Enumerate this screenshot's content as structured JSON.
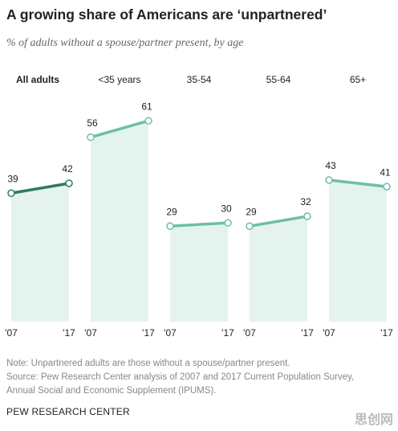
{
  "title": "A growing share of Americans are ‘unpartnered’",
  "subtitle": "% of adults without a spouse/partner present, by age",
  "note": "Note: Unpartnered adults are those without a spouse/partner present.",
  "source": "Source: Pew Research Center analysis of 2007 and 2017 Current Population Survey, Annual Social and Economic Supplement (IPUMS).",
  "credit": "PEW RESEARCH CENTER",
  "watermark": "思创网",
  "chart_data": [
    {
      "type": "line",
      "title": "All adults",
      "categories": [
        "'07",
        "'17"
      ],
      "values": [
        39,
        42
      ],
      "color": "#2e7a68",
      "fill": "#e5f3ee",
      "ylim": [
        0,
        63
      ]
    },
    {
      "type": "line",
      "title": "<35 years",
      "categories": [
        "'07",
        "'17"
      ],
      "values": [
        56,
        61
      ],
      "color": "#6cbfa9",
      "fill": "#e5f3ee",
      "ylim": [
        0,
        63
      ]
    },
    {
      "type": "line",
      "title": "35-54",
      "categories": [
        "'07",
        "'17"
      ],
      "values": [
        29,
        30
      ],
      "color": "#6cbfa9",
      "fill": "#e5f3ee",
      "ylim": [
        0,
        63
      ]
    },
    {
      "type": "line",
      "title": "55-64",
      "categories": [
        "'07",
        "'17"
      ],
      "values": [
        29,
        32
      ],
      "color": "#6cbfa9",
      "fill": "#e5f3ee",
      "ylim": [
        0,
        63
      ]
    },
    {
      "type": "line",
      "title": "65+",
      "categories": [
        "'07",
        "'17"
      ],
      "values": [
        43,
        41
      ],
      "color": "#6cbfa9",
      "fill": "#e5f3ee",
      "ylim": [
        0,
        63
      ]
    }
  ]
}
